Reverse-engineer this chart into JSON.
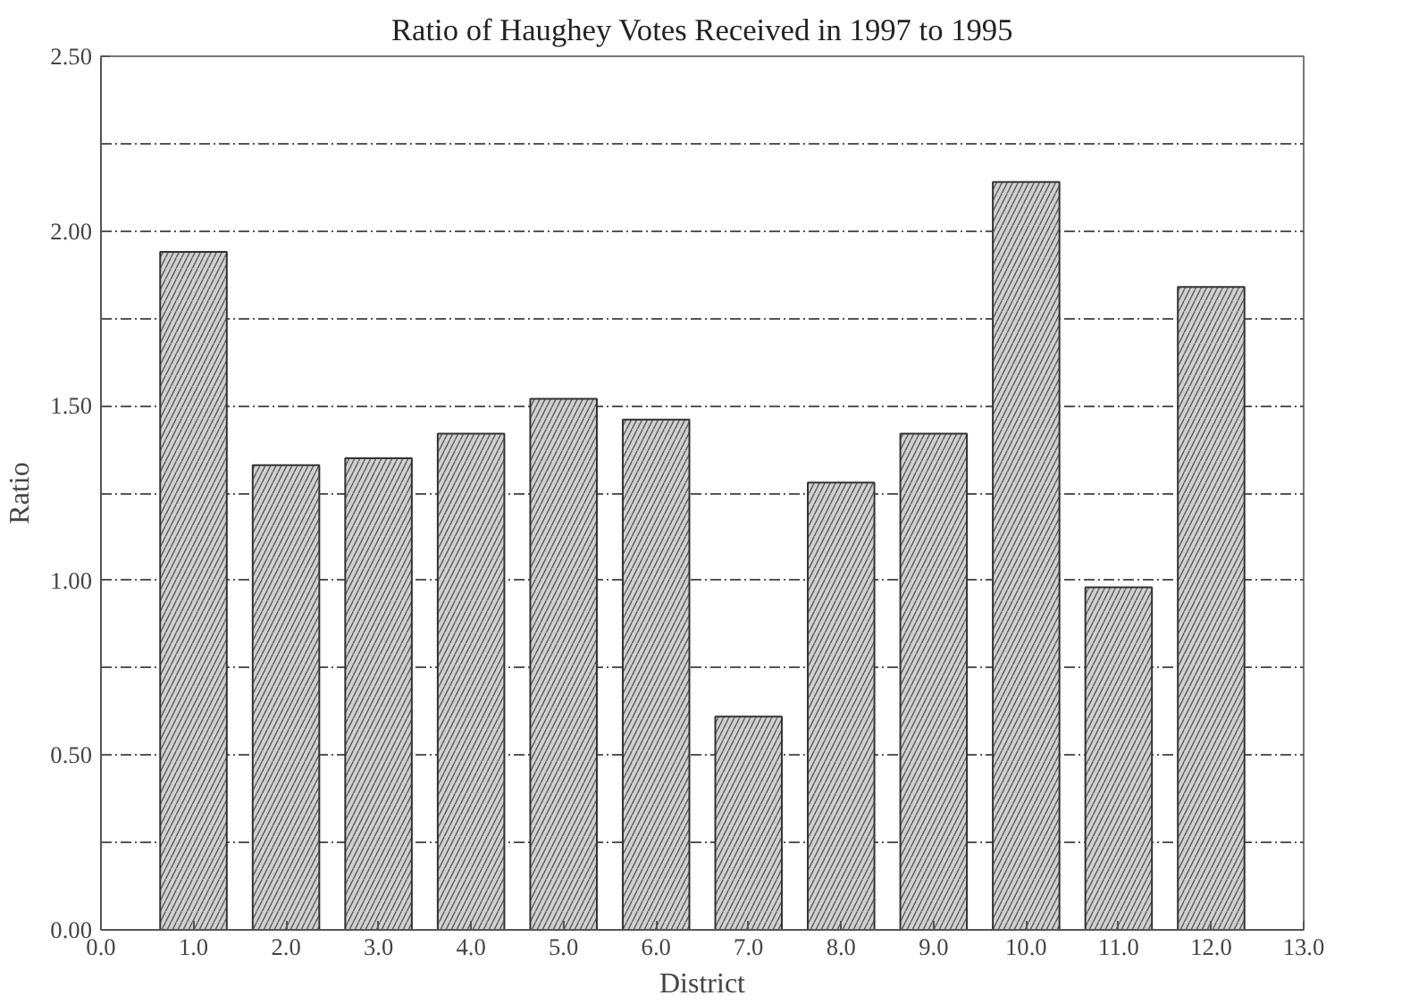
{
  "chart_data": {
    "type": "bar",
    "title": "Ratio of Haughey Votes Received in 1997 to 1995",
    "xlabel": "District",
    "ylabel": "Ratio",
    "x": [
      1,
      2,
      3,
      4,
      5,
      6,
      7,
      8,
      9,
      10,
      11,
      12
    ],
    "values": [
      1.94,
      1.33,
      1.35,
      1.42,
      1.52,
      1.46,
      0.61,
      1.28,
      1.42,
      2.14,
      0.98,
      1.84
    ],
    "color": "#d0d0d0",
    "xlim": [
      0,
      13
    ],
    "xticks": [
      {
        "value": 0,
        "label": "0.0"
      },
      {
        "value": 1,
        "label": "1.0"
      },
      {
        "value": 2,
        "label": "2.0"
      },
      {
        "value": 3,
        "label": "3.0"
      },
      {
        "value": 4,
        "label": "4.0"
      },
      {
        "value": 5,
        "label": "5.0"
      },
      {
        "value": 6,
        "label": "6.0"
      },
      {
        "value": 7,
        "label": "7.0"
      },
      {
        "value": 8,
        "label": "8.0"
      },
      {
        "value": 9,
        "label": "9.0"
      },
      {
        "value": 10,
        "label": "10.0"
      },
      {
        "value": 11,
        "label": "11.0"
      },
      {
        "value": 12,
        "label": "12.0"
      },
      {
        "value": 13,
        "label": "13.0"
      }
    ],
    "ylim": [
      0,
      2.5
    ],
    "yticks": [
      {
        "value": 0,
        "label": "0.00"
      },
      {
        "value": 0.25,
        "label": null
      },
      {
        "value": 0.5,
        "label": "0.50"
      },
      {
        "value": 0.75,
        "label": null
      },
      {
        "value": 1,
        "label": "1.00"
      },
      {
        "value": 1.25,
        "label": null
      },
      {
        "value": 1.5,
        "label": "1.50"
      },
      {
        "value": 1.75,
        "label": null
      },
      {
        "value": 2,
        "label": "2.00"
      },
      {
        "value": 2.25,
        "label": null
      },
      {
        "value": 2.5,
        "label": "2.50"
      }
    ],
    "grid": "y"
  }
}
